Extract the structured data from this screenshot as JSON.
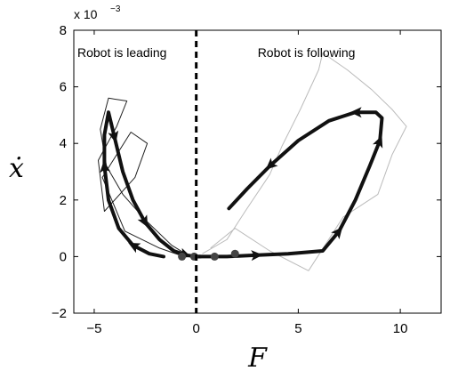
{
  "chart_data": {
    "type": "line",
    "xlabel": "F",
    "ylabel": "ẋ",
    "xlim": [
      -6,
      12
    ],
    "ylim": [
      -2,
      8
    ],
    "y_scale_factor": {
      "base": "x 10",
      "exponent": "−3"
    },
    "x_ticks": [
      -5,
      0,
      5,
      10
    ],
    "x_tick_labels": [
      "−5",
      "0",
      "5",
      "10"
    ],
    "y_ticks": [
      -2,
      0,
      2,
      4,
      6,
      8
    ],
    "y_tick_labels": [
      "−2",
      "0",
      "2",
      "4",
      "6",
      "8"
    ],
    "grid": false,
    "divider": {
      "x": 0,
      "style": "dashed"
    },
    "regions": [
      {
        "label": "Robot is leading"
      },
      {
        "label": "Robot is following"
      }
    ],
    "series": [
      {
        "role": "mean-trajectory-leading",
        "color": "#111111",
        "x": [
          -1.6,
          -2.3,
          -3.1,
          -3.8,
          -4.3,
          -4.5,
          -4.5,
          -4.3,
          -4.0,
          -3.6,
          -3.1,
          -2.5,
          -1.8,
          -1.1,
          -0.5,
          0.0,
          0.2
        ],
        "y": [
          0.0,
          0.1,
          0.4,
          1.0,
          2.0,
          3.2,
          4.3,
          5.1,
          4.2,
          3.0,
          2.0,
          1.2,
          0.6,
          0.2,
          0.05,
          0.0,
          0.0
        ]
      },
      {
        "role": "mean-trajectory-following",
        "color": "#111111",
        "x": [
          0.0,
          1.5,
          3.0,
          4.5,
          6.2,
          7.0,
          7.8,
          8.5,
          9.0,
          9.1,
          8.8,
          7.8,
          6.5,
          5.0,
          3.6,
          2.5,
          1.6
        ],
        "y": [
          0.0,
          0.0,
          0.05,
          0.1,
          0.2,
          0.9,
          2.0,
          3.2,
          4.1,
          4.9,
          5.1,
          5.1,
          4.8,
          4.1,
          3.2,
          2.4,
          1.7
        ]
      },
      {
        "role": "trial-trajectories-leading",
        "color": "#222222",
        "x": [
          -0.3,
          -1.2,
          -2.5,
          -3.6,
          -4.4,
          -4.7,
          -4.3,
          -3.4,
          -3.9,
          -4.8,
          -4.5,
          -3.0,
          -2.4,
          -3.2,
          -4.6,
          -3.5,
          -1.8,
          -0.6
        ],
        "y": [
          0.0,
          0.4,
          1.3,
          2.2,
          3.2,
          4.5,
          5.6,
          5.5,
          4.6,
          3.4,
          1.6,
          2.8,
          4.0,
          4.4,
          2.8,
          0.9,
          0.3,
          0.0
        ]
      },
      {
        "role": "trial-trajectories-following",
        "color": "#bbbbbb",
        "x": [
          0.3,
          1.5,
          2.4,
          3.6,
          4.2,
          5.1,
          6.0,
          6.2,
          7.4,
          8.6,
          9.6,
          10.3,
          9.6,
          8.9,
          7.2,
          5.5,
          3.6,
          1.9,
          0.7
        ],
        "y": [
          0.1,
          0.6,
          1.6,
          2.9,
          3.9,
          5.2,
          6.6,
          7.2,
          6.6,
          5.9,
          5.2,
          4.6,
          3.6,
          2.2,
          1.4,
          -0.5,
          0.2,
          1.0,
          0.3
        ]
      }
    ],
    "markers": {
      "x": [
        -0.7,
        -0.1,
        0.9,
        1.9
      ],
      "y": [
        0.0,
        0.0,
        0.0,
        0.1
      ],
      "color": "#444444"
    }
  }
}
